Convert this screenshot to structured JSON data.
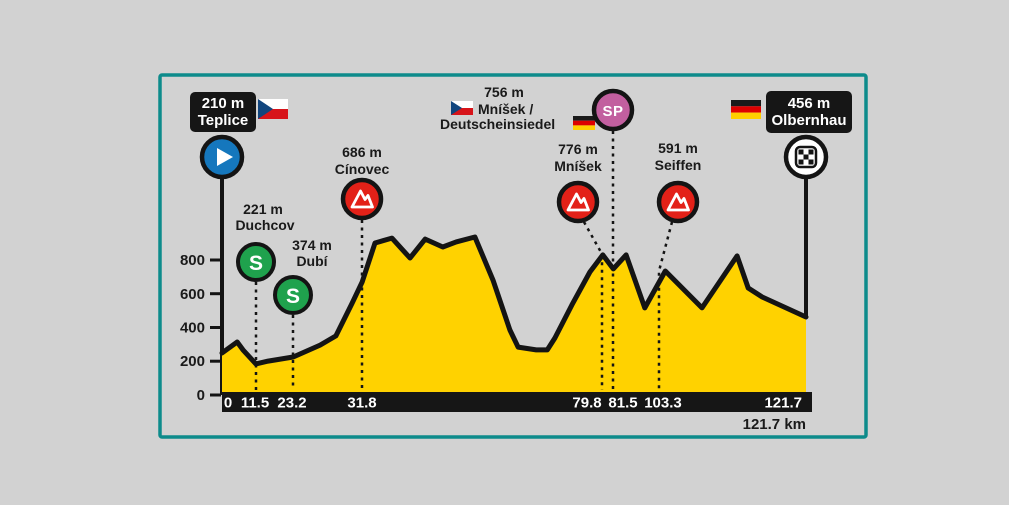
{
  "route": {
    "start": {
      "elevation": "210 m",
      "name": "Teplice",
      "flag": "czech-flag"
    },
    "finish": {
      "elevation": "456 m",
      "name": "Olbernhau",
      "flag": "german-flag"
    },
    "sprint_points": [
      {
        "elevation": "221 m",
        "name": "Duchcov",
        "badge": "S"
      },
      {
        "elevation": "374 m",
        "name": "Dubí",
        "badge": "S"
      }
    ],
    "climbs": [
      {
        "elevation": "686 m",
        "name": "Cínovec"
      },
      {
        "elevation": "776 m",
        "name": "Mníšek"
      },
      {
        "elevation": "591 m",
        "name": "Seiffen"
      }
    ],
    "border_sp": {
      "elevation": "756 m",
      "name_line1": "Mníšek /",
      "name_line2": "Deutscheinsiedel",
      "badge": "SP"
    }
  },
  "axis": {
    "y_labels": [
      "800",
      "600",
      "400",
      "200",
      "0"
    ],
    "x_labels": [
      "0",
      "11.5",
      "23.2",
      "31.8",
      "79.8",
      "81.5",
      "103.3",
      "121.7"
    ],
    "total_distance": "121.7 km"
  },
  "colors": {
    "background": "#d2d2d2",
    "frame_teal": "#0d8b8b",
    "profile_yellow": "#ffd200",
    "outline_black": "#141414",
    "sprint_green": "#1fa24d",
    "climb_red": "#e32118",
    "sp_pink": "#c25f9f",
    "start_blue": "#1577bd"
  },
  "chart_data": {
    "type": "area",
    "title": "Cycling stage elevation profile: Teplice to Olbernhau",
    "x_unit": "km",
    "y_unit": "m",
    "x_ticks_km": [
      0,
      11.5,
      23.2,
      31.8,
      79.8,
      81.5,
      103.3,
      121.7
    ],
    "y_ticks_m": [
      0,
      200,
      400,
      600,
      800
    ],
    "ylim": [
      0,
      1000
    ],
    "total_distance_km": 121.7,
    "start_elevation_m": 210,
    "finish_elevation_m": 456,
    "profile_points": [
      [
        0.0,
        249
      ],
      [
        0.026,
        314
      ],
      [
        0.036,
        267
      ],
      [
        0.058,
        184
      ],
      [
        0.079,
        201
      ],
      [
        0.122,
        225
      ],
      [
        0.168,
        296
      ],
      [
        0.195,
        350
      ],
      [
        0.223,
        545
      ],
      [
        0.24,
        670
      ],
      [
        0.262,
        901
      ],
      [
        0.291,
        930
      ],
      [
        0.322,
        812
      ],
      [
        0.348,
        924
      ],
      [
        0.378,
        877
      ],
      [
        0.401,
        907
      ],
      [
        0.433,
        936
      ],
      [
        0.464,
        681
      ],
      [
        0.493,
        385
      ],
      [
        0.507,
        284
      ],
      [
        0.538,
        267
      ],
      [
        0.557,
        267
      ],
      [
        0.57,
        338
      ],
      [
        0.599,
        533
      ],
      [
        0.63,
        729
      ],
      [
        0.652,
        830
      ],
      [
        0.67,
        747
      ],
      [
        0.692,
        830
      ],
      [
        0.724,
        516
      ],
      [
        0.759,
        735
      ],
      [
        0.822,
        516
      ],
      [
        0.882,
        824
      ],
      [
        0.901,
        634
      ],
      [
        0.925,
        581
      ],
      [
        1.0,
        462
      ]
    ]
  }
}
